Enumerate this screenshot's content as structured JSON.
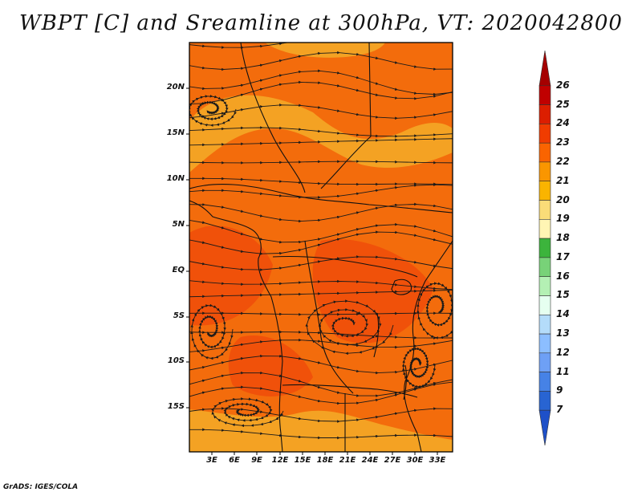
{
  "title": "WBPT [C] and Sreamline at 300hPa, VT: 2020042800",
  "footer": "GrADS: IGES/COLA",
  "lat_labels": [
    "20N",
    "15N",
    "10N",
    "5N",
    "EQ",
    "5S",
    "10S",
    "15S"
  ],
  "lon_labels": [
    "3E",
    "6E",
    "9E",
    "12E",
    "15E",
    "18E",
    "21E",
    "24E",
    "27E",
    "30E",
    "33E"
  ],
  "colorbar": {
    "labels": [
      "26",
      "25",
      "24",
      "23",
      "22",
      "21",
      "20",
      "19",
      "18",
      "17",
      "16",
      "15",
      "14",
      "13",
      "12",
      "11",
      "9",
      "7"
    ],
    "colors": [
      "#a50000",
      "#c00000",
      "#dc1e00",
      "#f03c00",
      "#fa6400",
      "#fa9600",
      "#fab400",
      "#fadc78",
      "#fff5b4",
      "#3cb43c",
      "#78d278",
      "#b4f0b4",
      "#e6fff0",
      "#b4dcfa",
      "#8cbeff",
      "#6ea0f5",
      "#4682e6",
      "#2864d2",
      "#1e50c8"
    ]
  },
  "field_colors": {
    "base": "#f36c0c",
    "warm": "#f0510a",
    "cool": "#f4a223",
    "streamline": "#1a1a1a",
    "coast": "#111111"
  }
}
